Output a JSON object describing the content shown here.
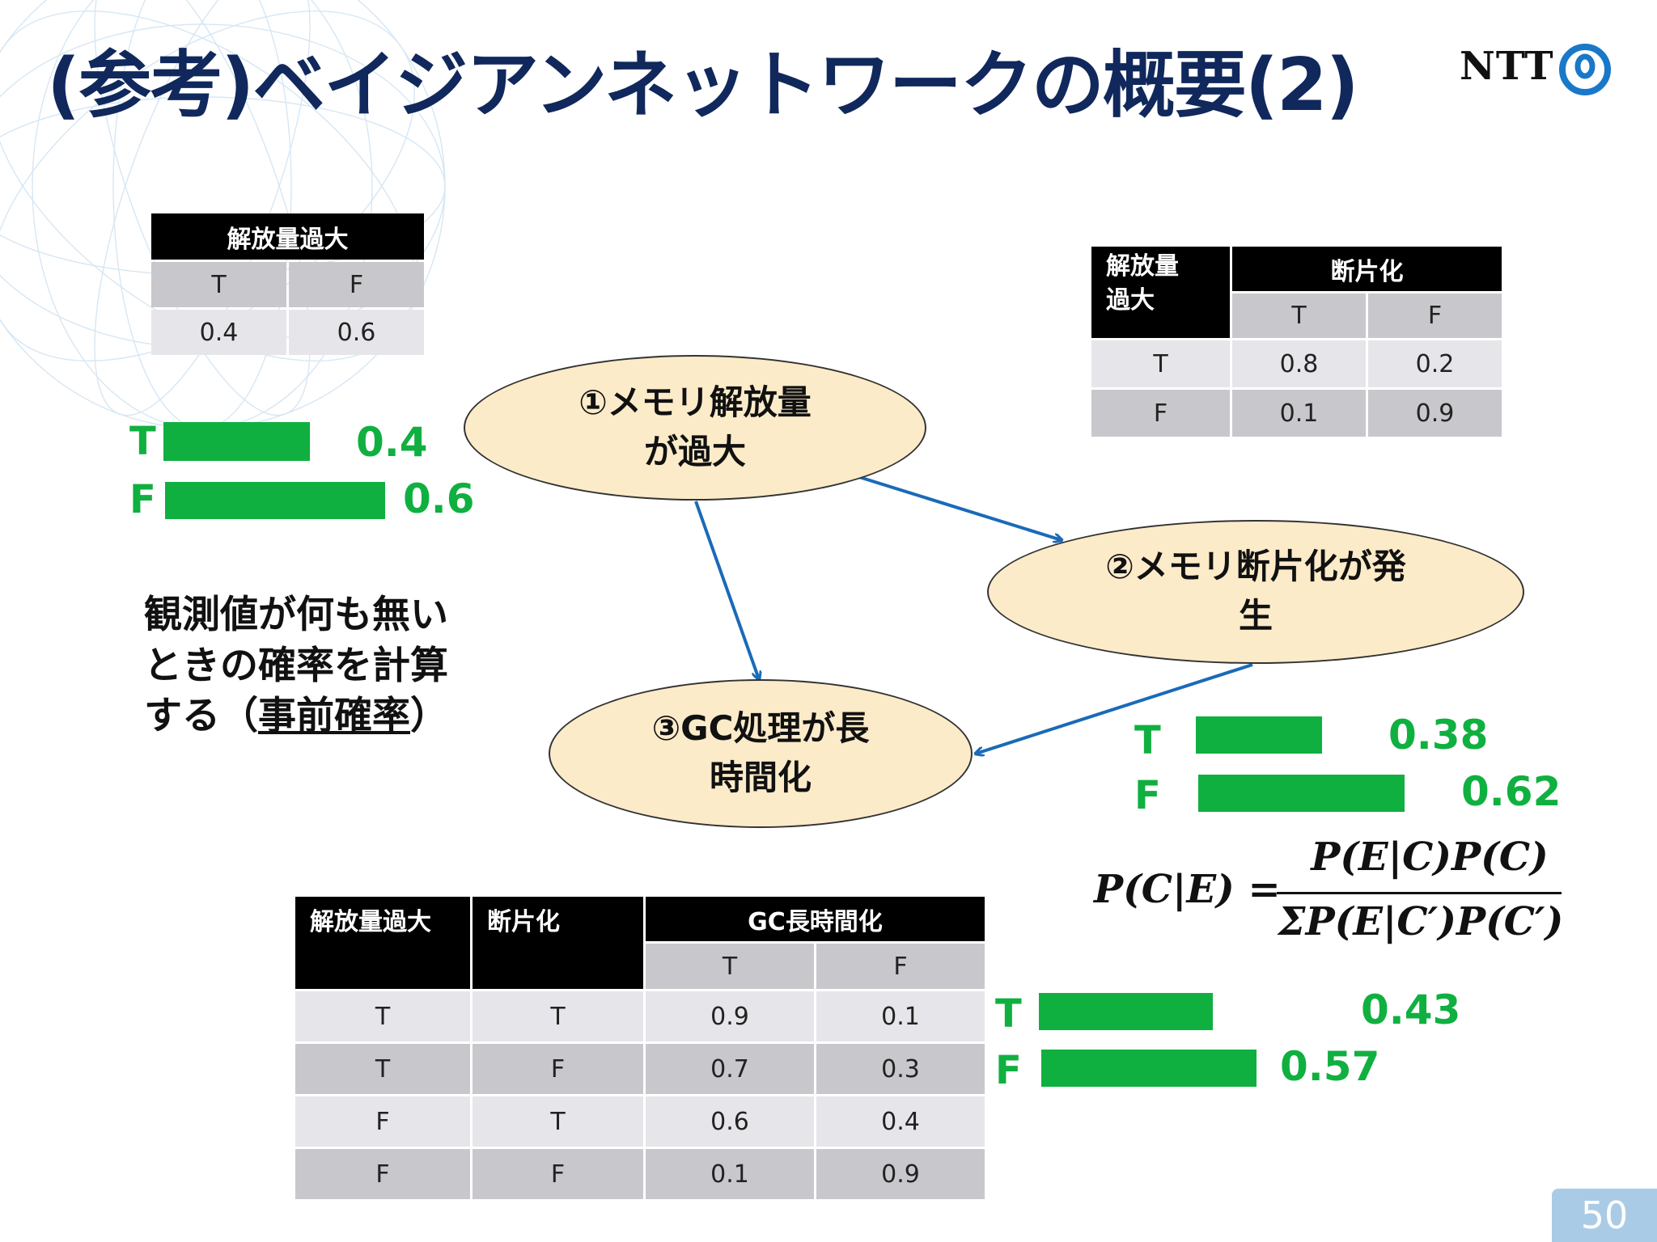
{
  "title": "(参考)ベイジアンネットワークの概要(2)",
  "logo": {
    "text": "NTT",
    "icon": "ntt-logo-icon"
  },
  "nodes": {
    "n1": "①メモリ解放量\nが過大",
    "n2": "②メモリ断片化が発\n生",
    "n3": "③GC処理が長\n時間化"
  },
  "table1": {
    "header": "解放量過大",
    "cols": [
      "T",
      "F"
    ],
    "values": [
      "0.4",
      "0.6"
    ]
  },
  "table2": {
    "parent": "解放量\n過大",
    "header": "断片化",
    "cols": [
      "T",
      "F"
    ],
    "rows": [
      {
        "cond": "T",
        "values": [
          "0.8",
          "0.2"
        ]
      },
      {
        "cond": "F",
        "values": [
          "0.1",
          "0.9"
        ]
      }
    ]
  },
  "table3": {
    "parent1": "解放量過大",
    "parent2": "断片化",
    "header": "GC長時間化",
    "cols": [
      "T",
      "F"
    ],
    "rows": [
      {
        "c1": "T",
        "c2": "T",
        "values": [
          "0.9",
          "0.1"
        ]
      },
      {
        "c1": "T",
        "c2": "F",
        "values": [
          "0.7",
          "0.3"
        ]
      },
      {
        "c1": "F",
        "c2": "T",
        "values": [
          "0.6",
          "0.4"
        ]
      },
      {
        "c1": "F",
        "c2": "F",
        "values": [
          "0.1",
          "0.9"
        ]
      }
    ]
  },
  "bars": {
    "b1": {
      "t_label": "T",
      "t_value": "0.4",
      "t_fraction": 0.4,
      "f_label": "F",
      "f_value": "0.6",
      "f_fraction": 0.6
    },
    "b2": {
      "t_label": "T",
      "t_value": "0.38",
      "t_fraction": 0.38,
      "f_label": "F",
      "f_value": "0.62",
      "f_fraction": 0.62
    },
    "b3": {
      "t_label": "T",
      "t_value": "0.43",
      "t_fraction": 0.43,
      "f_label": "F",
      "f_value": "0.57",
      "f_fraction": 0.57
    }
  },
  "note": {
    "line1": "観測値が何も無い",
    "line2": "ときの確率を計算",
    "line3_pre": "する（",
    "line3_u": "事前確率",
    "line3_post": "）"
  },
  "formula": {
    "lhs": "P(C|E) =",
    "numerator": "P(E|C)P(C)",
    "denominator": "ΣP(E|C′)P(C′)"
  },
  "page_number": "50",
  "colors": {
    "title": "#10285c",
    "bar": "#10b040",
    "node_fill": "#fcebc9",
    "arrow": "#1a6ab8"
  }
}
